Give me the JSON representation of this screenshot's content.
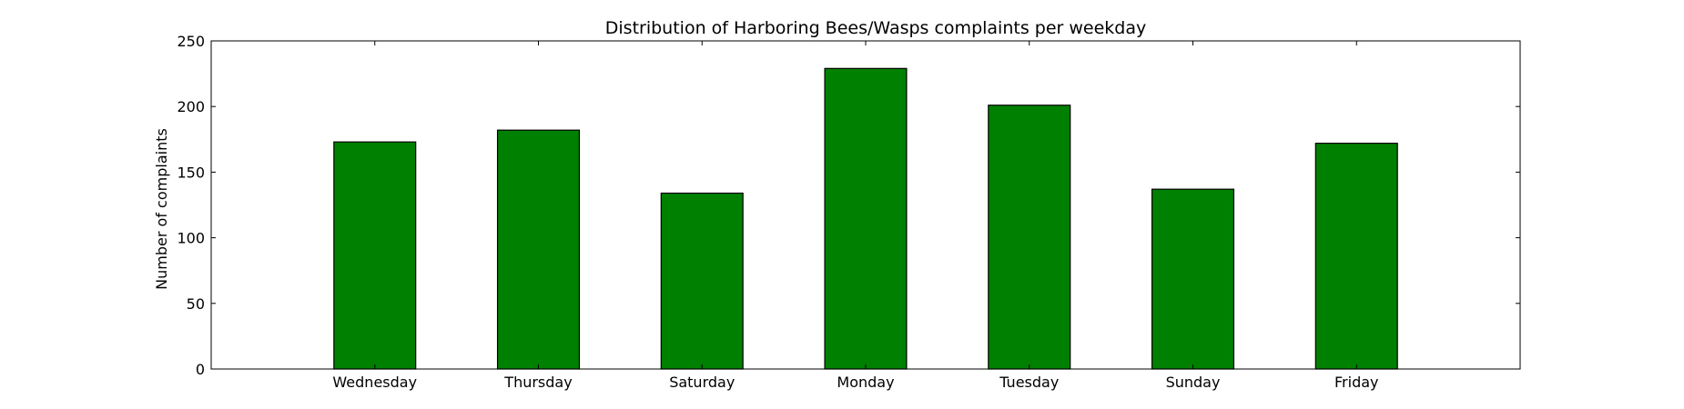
{
  "chart_data": {
    "type": "bar",
    "title": "Distribution of  Harboring Bees/Wasps complaints per weekday",
    "xlabel": "",
    "ylabel": "Number of complaints",
    "categories": [
      "Wednesday",
      "Thursday",
      "Saturday",
      "Monday",
      "Tuesday",
      "Sunday",
      "Friday"
    ],
    "values": [
      173,
      182,
      134,
      229,
      201,
      137,
      172
    ],
    "ylim": [
      0,
      250
    ],
    "yticks": [
      0,
      50,
      100,
      150,
      200,
      250
    ],
    "xlim": [
      -1,
      7
    ],
    "grid": false,
    "legend": "none",
    "bar_color": "#008000",
    "edge_color": "#000000"
  }
}
